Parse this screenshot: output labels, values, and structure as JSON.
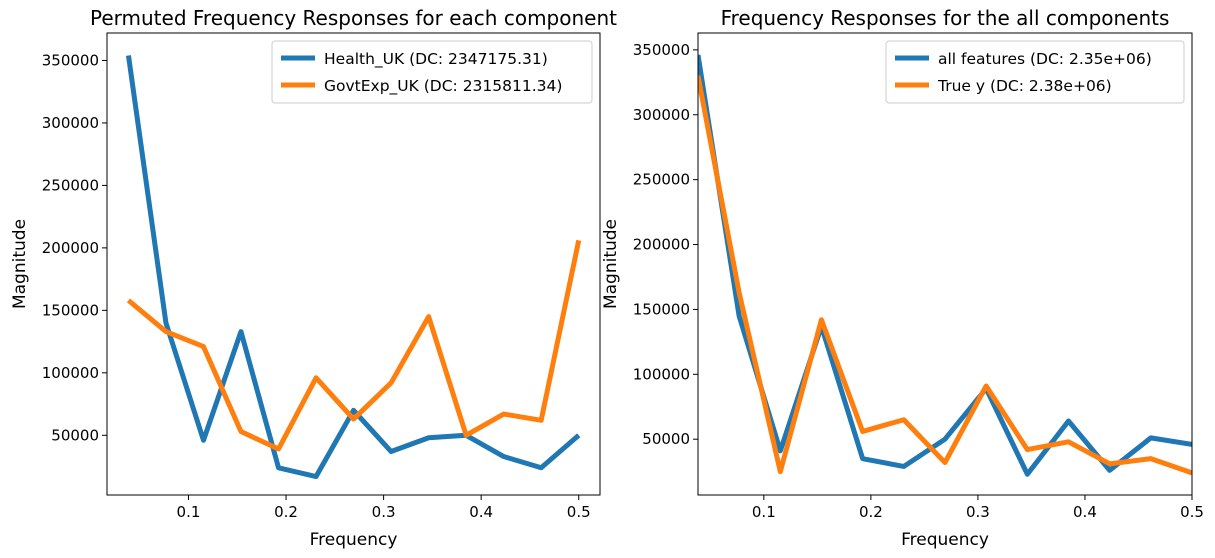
{
  "chart_data": [
    {
      "type": "line",
      "title": "Permuted Frequency Responses for each component",
      "xlabel": "Frequency",
      "ylabel": "Magnitude",
      "xlim": [
        0.0165,
        0.5218
      ],
      "ylim": [
        2200,
        372000
      ],
      "xticks": [
        0.1,
        0.2,
        0.3,
        0.4,
        0.5
      ],
      "yticks": [
        50000,
        100000,
        150000,
        200000,
        250000,
        300000,
        350000
      ],
      "legend_position": "top-right",
      "x": [
        0.0385,
        0.0769,
        0.1154,
        0.1538,
        0.1923,
        0.2308,
        0.2692,
        0.3077,
        0.3462,
        0.3846,
        0.4231,
        0.4615,
        0.5
      ],
      "series": [
        {
          "name": "Health_UK (DC: 2347175.31)",
          "color": "#1f77b4",
          "values": [
            354000,
            140000,
            46000,
            133000,
            24000,
            17000,
            70000,
            37000,
            48000,
            50000,
            33000,
            24000,
            50000
          ]
        },
        {
          "name": "GovtExp_UK (DC: 2315811.34)",
          "color": "#ff7f0e",
          "values": [
            158000,
            133000,
            121000,
            53000,
            39000,
            96000,
            63000,
            92000,
            145000,
            50000,
            67000,
            62000,
            206000
          ]
        }
      ]
    },
    {
      "type": "line",
      "title": "Frequency Responses for the all components",
      "xlabel": "Frequency",
      "ylabel": "Magnitude",
      "xlim": [
        0.0385,
        0.5
      ],
      "ylim": [
        7000,
        363000
      ],
      "xticks": [
        0.1,
        0.2,
        0.3,
        0.4,
        0.5
      ],
      "yticks": [
        50000,
        100000,
        150000,
        200000,
        250000,
        300000,
        350000
      ],
      "legend_position": "top-right",
      "x": [
        0.0385,
        0.0769,
        0.1154,
        0.1538,
        0.1923,
        0.2308,
        0.2692,
        0.3077,
        0.3462,
        0.3846,
        0.4231,
        0.4615,
        0.5
      ],
      "series": [
        {
          "name": "all features (DC: 2.35e+06)",
          "color": "#1f77b4",
          "values": [
            346000,
            145000,
            41000,
            137000,
            35000,
            29000,
            50000,
            89000,
            23000,
            64000,
            26000,
            51000,
            46000
          ]
        },
        {
          "name": "True y (DC: 2.38e+06)",
          "color": "#ff7f0e",
          "values": [
            330000,
            163000,
            25000,
            142000,
            56000,
            65000,
            32000,
            91000,
            42000,
            48000,
            31000,
            35000,
            24000
          ]
        }
      ]
    }
  ]
}
